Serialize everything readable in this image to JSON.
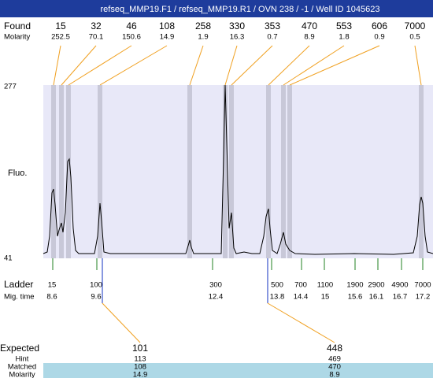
{
  "header": {
    "title": "refseq_MMP19.F1 / refseq_MMP19.R1 / OVN 238 / -1 / Well ID 1045623"
  },
  "found": {
    "label": "Found",
    "sublabel": "Molarity",
    "peaks": [
      {
        "size": 15,
        "molarity": 252.5
      },
      {
        "size": 32,
        "molarity": 70.1
      },
      {
        "size": 46,
        "molarity": 150.6
      },
      {
        "size": 108,
        "molarity": 14.9
      },
      {
        "size": 258,
        "molarity": 1.9
      },
      {
        "size": 330,
        "molarity": 16.3
      },
      {
        "size": 353,
        "molarity": 0.7
      },
      {
        "size": 470,
        "molarity": 8.9
      },
      {
        "size": 553,
        "molarity": 1.8
      },
      {
        "size": 606,
        "molarity": 0.9
      },
      {
        "size": 7000,
        "molarity": 0.5
      }
    ]
  },
  "y_axis": {
    "label": "Fluo.",
    "max": 277,
    "min": 41
  },
  "ladder": {
    "label": "Ladder",
    "sublabel": "Mig. time",
    "markers": [
      {
        "size": 15,
        "time": 8.6
      },
      {
        "size": 100,
        "time": 9.6
      },
      {
        "size": 300,
        "time": 12.4
      },
      {
        "size": 500,
        "time": 13.8
      },
      {
        "size": 700,
        "time": 14.4
      },
      {
        "size": 1100,
        "time": 15
      },
      {
        "size": 1900,
        "time": 15.6
      },
      {
        "size": 2900,
        "time": 16.1
      },
      {
        "size": 4900,
        "time": 16.7
      },
      {
        "size": 7000,
        "time": 17.2
      }
    ]
  },
  "results": {
    "labels": [
      "Expected",
      "Hint",
      "Matched",
      "Molarity"
    ],
    "columns": [
      {
        "expected": 101,
        "hint": 113,
        "matched": 108,
        "molarity": 14.9
      },
      {
        "expected": 448,
        "hint": 469,
        "matched": 470,
        "molarity": 8.9
      }
    ]
  }
}
